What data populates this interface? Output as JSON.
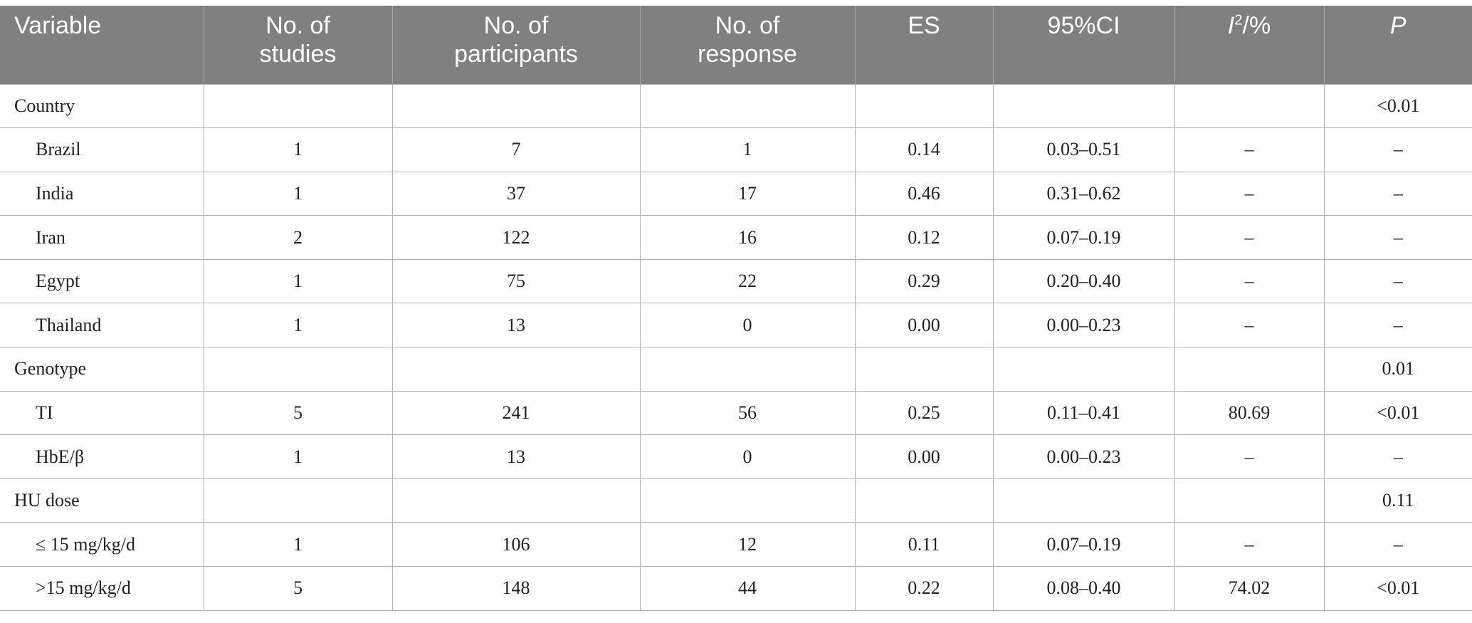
{
  "headers": {
    "variable": "Variable",
    "studies": [
      "No. of",
      "studies"
    ],
    "participants": [
      "No. of",
      "participants"
    ],
    "response": [
      "No. of",
      "response"
    ],
    "es": "ES",
    "ci": "95%CI",
    "i2_base": "I",
    "i2_sup": "2",
    "i2_suffix": "/%",
    "p": "P"
  },
  "rows": [
    {
      "variable": "Country",
      "studies": "",
      "participants": "",
      "response": "",
      "es": "",
      "ci": "",
      "i2": "",
      "p": "<0.01"
    },
    {
      "variable": "Brazil",
      "studies": "1",
      "participants": "7",
      "response": "1",
      "es": "0.14",
      "ci": "0.03–0.51",
      "i2": "–",
      "p": "–"
    },
    {
      "variable": "India",
      "studies": "1",
      "participants": "37",
      "response": "17",
      "es": "0.46",
      "ci": "0.31–0.62",
      "i2": "–",
      "p": "–"
    },
    {
      "variable": "Iran",
      "studies": "2",
      "participants": "122",
      "response": "16",
      "es": "0.12",
      "ci": "0.07–0.19",
      "i2": "–",
      "p": "–"
    },
    {
      "variable": "Egypt",
      "studies": "1",
      "participants": "75",
      "response": "22",
      "es": "0.29",
      "ci": "0.20–0.40",
      "i2": "–",
      "p": "–"
    },
    {
      "variable": "Thailand",
      "studies": "1",
      "participants": "13",
      "response": "0",
      "es": "0.00",
      "ci": "0.00–0.23",
      "i2": "–",
      "p": "–"
    },
    {
      "variable": "Genotype",
      "studies": "",
      "participants": "",
      "response": "",
      "es": "",
      "ci": "",
      "i2": "",
      "p": "0.01"
    },
    {
      "variable": "TI",
      "studies": "5",
      "participants": "241",
      "response": "56",
      "es": "0.25",
      "ci": "0.11–0.41",
      "i2": "80.69",
      "p": "<0.01"
    },
    {
      "variable": "HbE/β",
      "studies": "1",
      "participants": "13",
      "response": "0",
      "es": "0.00",
      "ci": "0.00–0.23",
      "i2": "–",
      "p": "–"
    },
    {
      "variable": "HU dose",
      "studies": "",
      "participants": "",
      "response": "",
      "es": "",
      "ci": "",
      "i2": "",
      "p": "0.11"
    },
    {
      "variable": "≤ 15 mg/kg/d",
      "studies": "1",
      "participants": "106",
      "response": "12",
      "es": "0.11",
      "ci": "0.07–0.19",
      "i2": "–",
      "p": "–"
    },
    {
      "variable": ">15 mg/kg/d",
      "studies": "5",
      "participants": "148",
      "response": "44",
      "es": "0.22",
      "ci": "0.08–0.40",
      "i2": "74.02",
      "p": "<0.01"
    }
  ]
}
